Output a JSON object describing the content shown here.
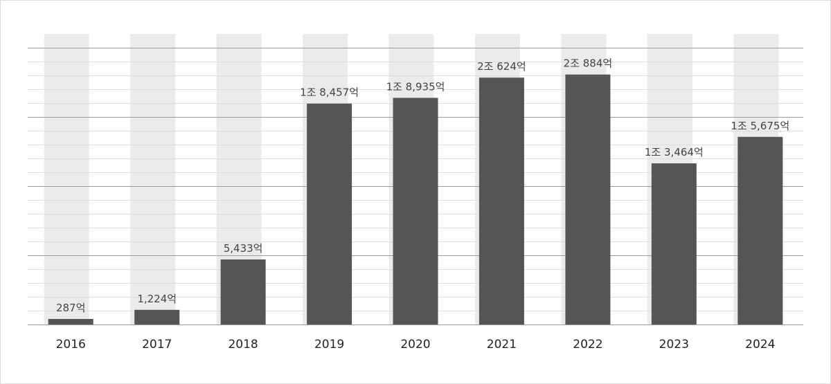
{
  "chart_data": {
    "type": "bar",
    "title": "",
    "xlabel": "",
    "ylabel": "",
    "categories": [
      "2016",
      "2017",
      "2018",
      "2019",
      "2020",
      "2021",
      "2022",
      "2023",
      "2024"
    ],
    "series": [
      {
        "values": [
          287,
          1224,
          5433,
          18457,
          18935,
          20624,
          20884,
          13464,
          15675
        ],
        "labels": [
          "287억",
          "1,224억",
          "5,433억",
          "1조 8,457억",
          "1조 8,935억",
          "2조 624억",
          "2조 884억",
          "1조 3,464억",
          "1조 5,675억"
        ]
      }
    ],
    "background_bars": true,
    "grid": true,
    "colors": {
      "bar": "#555555",
      "background_bar": "#ebebeb",
      "major_grid": "#9a9a9a",
      "minor_grid": "#dedede"
    }
  }
}
